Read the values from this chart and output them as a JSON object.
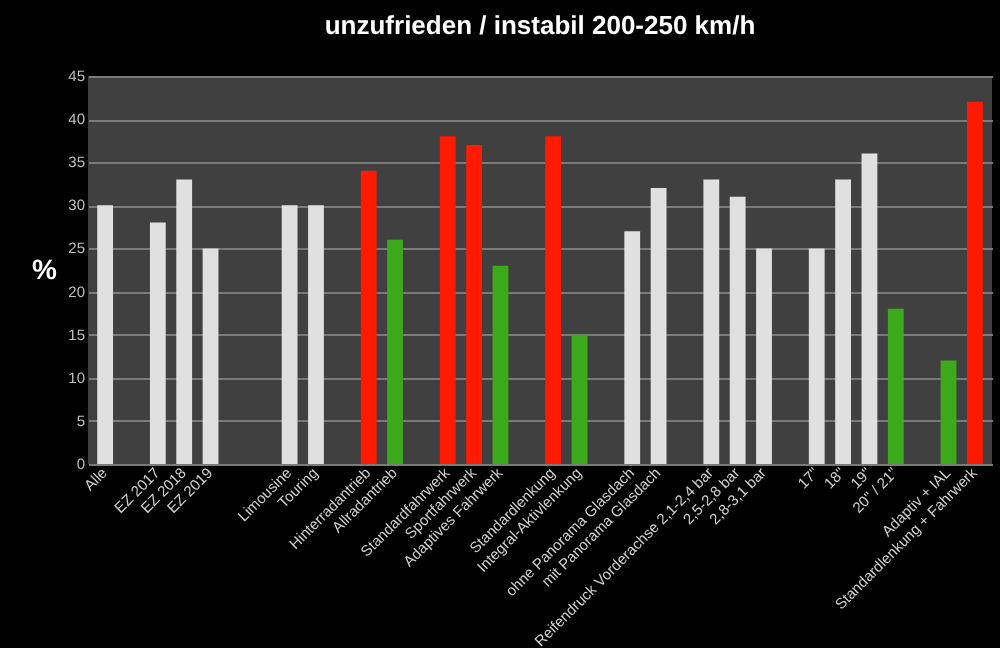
{
  "chart_data": {
    "type": "bar",
    "title": "unzufrieden / instabil  200-250 km/h",
    "ylabel": "%",
    "categories": [
      "Alle",
      null,
      "EZ 2017",
      "EZ 2018",
      "EZ 2019",
      null,
      null,
      "Limousine",
      "Touring",
      null,
      "Hinterradantrieb",
      "Allradantrieb",
      null,
      "Standardfahrwerk",
      "Sportfahrwerk",
      "Adaptives Fahrwerk",
      null,
      "Standardlenkung",
      "Integral-Aktivlenkung",
      null,
      "ohne Panorama Glasdach",
      "mit Panorama Glasdach",
      null,
      "Reifendruck Vorderachse 2,1-2,4 bar",
      "2,5-2,8 bar",
      "2,8-3,1 bar",
      null,
      "17\"",
      "18\"",
      "19\"",
      "20\" / 21\"",
      null,
      "Adaptiv + IAL",
      "Standardlenkung + Fahrwerk"
    ],
    "values": [
      30,
      null,
      28,
      33,
      25,
      null,
      null,
      30,
      30,
      null,
      34,
      26,
      null,
      38,
      37,
      23,
      null,
      38,
      15,
      null,
      27,
      32,
      null,
      33,
      31,
      25,
      null,
      25,
      33,
      36,
      18,
      null,
      12,
      42
    ],
    "colors": [
      "#e0e0e0",
      null,
      "#e0e0e0",
      "#e0e0e0",
      "#e0e0e0",
      null,
      null,
      "#e0e0e0",
      "#e0e0e0",
      null,
      "#ff1a00",
      "#3aaa1a",
      null,
      "#ff1a00",
      "#ff1a00",
      "#3aaa1a",
      null,
      "#ff1a00",
      "#3aaa1a",
      null,
      "#e0e0e0",
      "#e0e0e0",
      null,
      "#e0e0e0",
      "#e0e0e0",
      "#e0e0e0",
      null,
      "#e0e0e0",
      "#e0e0e0",
      "#e0e0e0",
      "#3aaa1a",
      null,
      "#3aaa1a",
      "#ff1a00"
    ],
    "ylim": [
      0,
      45
    ],
    "yticks": [
      0,
      5,
      10,
      15,
      20,
      25,
      30,
      35,
      40,
      45
    ],
    "grid": true
  }
}
